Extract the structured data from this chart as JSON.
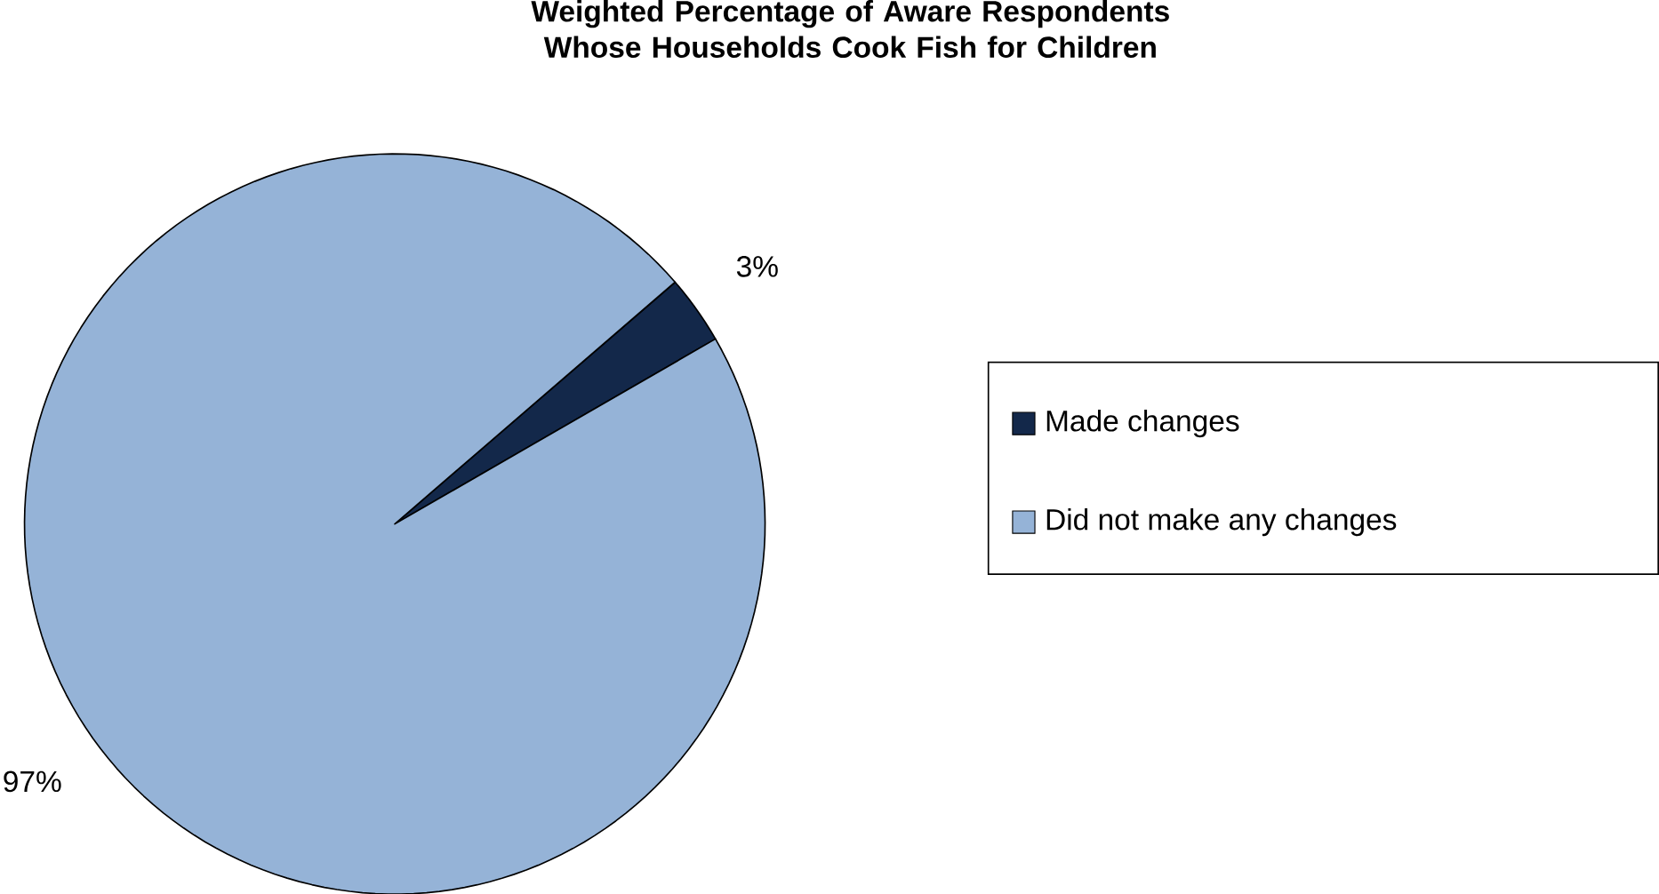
{
  "chart_data": {
    "type": "pie",
    "title": "Weighted Percentage of Aware Respondents Whose Households Cook Fish for Children",
    "categories": [
      "Made changes",
      "Did not make any changes"
    ],
    "values": [
      3,
      97
    ],
    "colors": [
      "#13284a",
      "#95b3d7"
    ],
    "value_labels": [
      "3%",
      "97%"
    ],
    "legend": "right"
  }
}
